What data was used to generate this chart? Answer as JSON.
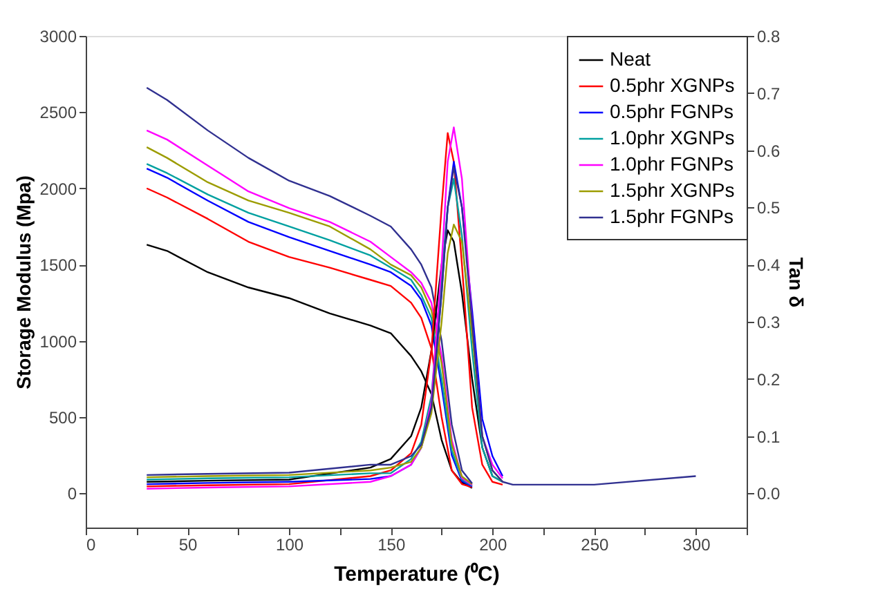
{
  "chart_data": {
    "type": "line",
    "xlabel": "Temperature (⁰C)",
    "ylabel": "Storage Modulus (Mpa)",
    "y2label": "Tan δ",
    "xlim": [
      0,
      325
    ],
    "ylim": [
      -225,
      3000
    ],
    "y2lim": [
      -0.06,
      0.8
    ],
    "xticks": [
      0,
      {
        "value": 25,
        "label": null
      },
      50,
      {
        "value": 75,
        "label": null
      },
      100,
      {
        "value": 125,
        "label": null
      },
      150,
      {
        "value": 175,
        "label": null
      },
      200,
      {
        "value": 225,
        "label": null
      },
      250,
      {
        "value": 275,
        "label": null
      },
      300,
      {
        "value": 325,
        "label": null
      }
    ],
    "yticks": [
      0,
      500,
      1000,
      1500,
      2000,
      2500,
      3000
    ],
    "y2ticks": [
      {
        "value": 0,
        "label": "0.0"
      },
      0.1,
      0.2,
      0.3,
      0.4,
      0.5,
      0.6,
      0.7,
      0.8
    ],
    "grid": false,
    "legend": "top right",
    "marker": "none",
    "line_style": "solid",
    "series": [
      {
        "name": "Neat",
        "color": "#000000",
        "x": [
          30,
          40,
          60,
          80,
          100,
          120,
          140,
          150,
          160,
          165,
          170,
          175,
          180,
          185,
          190
        ],
        "values": [
          1630,
          1590,
          1450,
          1350,
          1280,
          1180,
          1100,
          1050,
          900,
          800,
          650,
          350,
          150,
          70,
          35
        ]
      },
      {
        "name": "0.5phr XGNPs",
        "color": "#ff0000",
        "x": [
          30,
          40,
          60,
          80,
          100,
          120,
          140,
          150,
          160,
          165,
          170,
          175,
          180,
          185,
          190
        ],
        "values": [
          2000,
          1940,
          1800,
          1650,
          1550,
          1480,
          1400,
          1360,
          1250,
          1150,
          950,
          500,
          150,
          60,
          40
        ]
      },
      {
        "name": "0.5phr FGNPs",
        "color": "#0000ff",
        "x": [
          30,
          40,
          60,
          80,
          100,
          120,
          140,
          150,
          160,
          165,
          170,
          175,
          180,
          185,
          190
        ],
        "values": [
          2130,
          2070,
          1920,
          1780,
          1680,
          1590,
          1500,
          1450,
          1360,
          1270,
          1100,
          700,
          250,
          80,
          45
        ]
      },
      {
        "name": "1.0phr XGNPs",
        "color": "#00a0a0",
        "x": [
          30,
          40,
          60,
          80,
          100,
          120,
          140,
          150,
          160,
          165,
          170,
          175,
          180,
          185,
          190
        ],
        "values": [
          2160,
          2100,
          1960,
          1840,
          1750,
          1660,
          1560,
          1480,
          1400,
          1300,
          1150,
          750,
          280,
          90,
          50
        ]
      },
      {
        "name": "1.0phr FGNPs",
        "color": "#ff00ff",
        "x": [
          30,
          40,
          60,
          80,
          100,
          120,
          140,
          150,
          160,
          165,
          170,
          175,
          180,
          185,
          190
        ],
        "values": [
          2380,
          2320,
          2150,
          1980,
          1870,
          1780,
          1650,
          1550,
          1450,
          1380,
          1250,
          900,
          350,
          100,
          55
        ]
      },
      {
        "name": "1.5phr XGNPs",
        "color": "#9c9c00",
        "x": [
          30,
          40,
          60,
          80,
          100,
          120,
          140,
          150,
          160,
          165,
          170,
          175,
          180,
          185,
          190
        ],
        "values": [
          2270,
          2200,
          2040,
          1920,
          1840,
          1750,
          1600,
          1500,
          1430,
          1350,
          1200,
          850,
          320,
          110,
          60
        ]
      },
      {
        "name": "1.5phr FGNPs",
        "color": "#303090",
        "x": [
          30,
          40,
          60,
          80,
          100,
          120,
          140,
          150,
          160,
          165,
          170,
          175,
          180,
          185,
          190
        ],
        "values": [
          2660,
          2580,
          2380,
          2200,
          2050,
          1950,
          1820,
          1750,
          1600,
          1500,
          1350,
          1000,
          450,
          150,
          65
        ]
      },
      {
        "color": "#000000",
        "axis": "y2",
        "x": [
          30,
          60,
          100,
          140,
          150,
          160,
          165,
          170,
          175,
          178,
          181,
          185,
          190,
          195,
          200,
          205
        ],
        "values": [
          0.02,
          0.022,
          0.024,
          0.045,
          0.06,
          0.1,
          0.15,
          0.25,
          0.4,
          0.46,
          0.44,
          0.35,
          0.2,
          0.08,
          0.03,
          0.02
        ]
      },
      {
        "color": "#ff0000",
        "axis": "y2",
        "x": [
          30,
          60,
          100,
          140,
          150,
          160,
          165,
          170,
          175,
          178,
          181,
          185,
          190,
          195,
          200,
          205
        ],
        "values": [
          0.012,
          0.014,
          0.016,
          0.03,
          0.04,
          0.07,
          0.12,
          0.25,
          0.5,
          0.63,
          0.58,
          0.4,
          0.15,
          0.05,
          0.02,
          0.015
        ]
      },
      {
        "color": "#0000ff",
        "axis": "y2",
        "x": [
          30,
          60,
          100,
          140,
          150,
          160,
          165,
          170,
          175,
          178,
          181,
          185,
          190,
          195,
          200,
          205
        ],
        "values": [
          0.016,
          0.018,
          0.02,
          0.025,
          0.03,
          0.05,
          0.08,
          0.15,
          0.35,
          0.5,
          0.58,
          0.5,
          0.32,
          0.13,
          0.065,
          0.03
        ]
      },
      {
        "color": "#00a0a0",
        "axis": "y2",
        "x": [
          30,
          60,
          100,
          140,
          150,
          160,
          165,
          170,
          175,
          178,
          181,
          185,
          190,
          195,
          200,
          205
        ],
        "values": [
          0.024,
          0.026,
          0.028,
          0.035,
          0.035,
          0.06,
          0.09,
          0.17,
          0.38,
          0.5,
          0.55,
          0.45,
          0.25,
          0.08,
          0.03,
          0.02
        ]
      },
      {
        "color": "#ff00ff",
        "axis": "y2",
        "x": [
          30,
          60,
          100,
          140,
          150,
          160,
          165,
          170,
          175,
          178,
          181,
          185,
          190,
          195,
          200,
          205
        ],
        "values": [
          0.008,
          0.01,
          0.012,
          0.02,
          0.03,
          0.05,
          0.08,
          0.16,
          0.4,
          0.58,
          0.64,
          0.55,
          0.3,
          0.1,
          0.05,
          0.026
        ]
      },
      {
        "color": "#9c9c00",
        "axis": "y2",
        "x": [
          30,
          60,
          100,
          140,
          150,
          160,
          165,
          170,
          175,
          178,
          181,
          185,
          190,
          195,
          200,
          205
        ],
        "values": [
          0.028,
          0.03,
          0.032,
          0.04,
          0.045,
          0.055,
          0.08,
          0.14,
          0.3,
          0.42,
          0.47,
          0.44,
          0.28,
          0.1,
          0.04,
          0.02
        ]
      },
      {
        "color": "#303090",
        "axis": "y2",
        "x": [
          30,
          60,
          100,
          140,
          150,
          160,
          165,
          170,
          175,
          178,
          181,
          185,
          190,
          195,
          200,
          205,
          210,
          220,
          250,
          300
        ],
        "values": [
          0.032,
          0.034,
          0.036,
          0.05,
          0.05,
          0.065,
          0.085,
          0.15,
          0.35,
          0.5,
          0.57,
          0.5,
          0.3,
          0.1,
          0.04,
          0.02,
          0.015,
          0.015,
          0.015,
          0.03
        ]
      }
    ]
  }
}
